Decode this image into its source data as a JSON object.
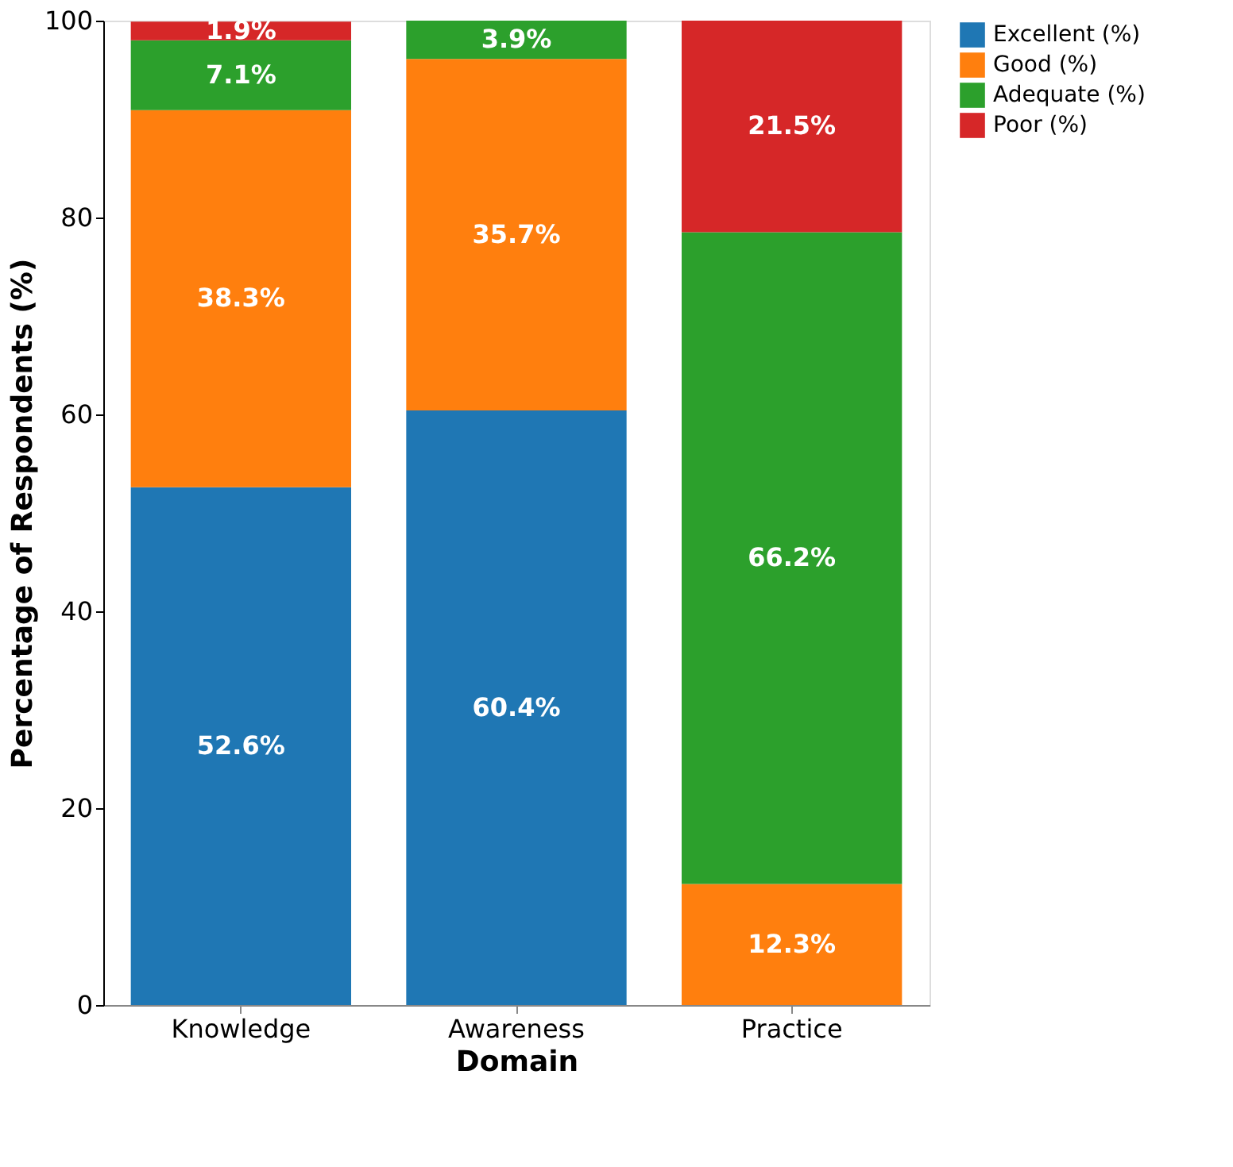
{
  "chart_data": {
    "type": "bar",
    "stacked": true,
    "xlabel": "Domain",
    "ylabel": "Percentage of Respondents (%)",
    "categories": [
      "Knowledge",
      "Awareness",
      "Practice"
    ],
    "series": [
      {
        "name": "Excellent (%)",
        "color": "#1f77b4",
        "values": [
          52.6,
          60.4,
          0
        ],
        "value_labels": [
          "52.6%",
          "60.4%",
          null
        ]
      },
      {
        "name": "Good (%)",
        "color": "#ff7f0e",
        "values": [
          38.3,
          35.7,
          12.3
        ],
        "value_labels": [
          "38.3%",
          "35.7%",
          "12.3%"
        ]
      },
      {
        "name": "Adequate (%)",
        "color": "#2ca02c",
        "values": [
          7.1,
          3.9,
          66.2
        ],
        "value_labels": [
          "7.1%",
          "3.9%",
          "66.2%"
        ]
      },
      {
        "name": "Poor (%)",
        "color": "#d62728",
        "values": [
          1.9,
          0,
          21.5
        ],
        "value_labels": [
          "1.9%",
          null,
          "21.5%"
        ]
      }
    ],
    "ylim": [
      0,
      100
    ],
    "yticks": [
      0,
      20,
      40,
      60,
      80,
      100
    ],
    "grid": false,
    "legend": "right"
  }
}
